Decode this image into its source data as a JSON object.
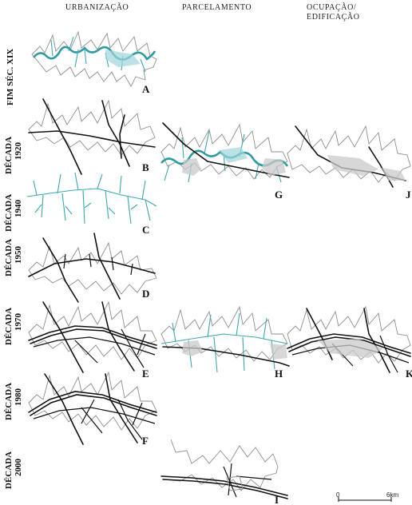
{
  "column_headers": {
    "urbanizacao": "URBANIZAÇÃO",
    "parcelamento": "PARCELAMENTO",
    "ocupacao_line1": "OCUPAÇÃO/",
    "ocupacao_line2": "EDIFICAÇÃO"
  },
  "rows": [
    {
      "label": "FIM SÉC. XIX",
      "year": ""
    },
    {
      "label": "DÉCADA",
      "year": "1920"
    },
    {
      "label": "DÉCADA",
      "year": "1940"
    },
    {
      "label": "DÉCADA",
      "year": "1950"
    },
    {
      "label": "DÉCADA",
      "year": "1970"
    },
    {
      "label": "DÉCADA",
      "year": "1980"
    },
    {
      "label": "DÉCADA",
      "year": "2000"
    }
  ],
  "panels": [
    "A",
    "B",
    "C",
    "D",
    "E",
    "F",
    "G",
    "H",
    "I",
    "J",
    "K"
  ],
  "scale_bar": {
    "start": "0",
    "end": "6km"
  },
  "colors": {
    "river": "#3aa9b0",
    "road": "#111111",
    "outline": "#8f8f8f",
    "built": "#c9c9c9"
  }
}
